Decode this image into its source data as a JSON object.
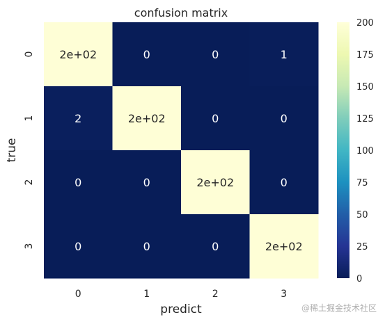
{
  "chart_data": {
    "type": "heatmap",
    "title": "confusion matrix",
    "xlabel": "predict",
    "ylabel": "true",
    "x_categories": [
      "0",
      "1",
      "2",
      "3"
    ],
    "y_categories": [
      "0",
      "1",
      "2",
      "3"
    ],
    "values": [
      [
        198,
        0,
        0,
        1
      ],
      [
        2,
        198,
        0,
        0
      ],
      [
        0,
        0,
        198,
        0
      ],
      [
        0,
        0,
        0,
        198
      ]
    ],
    "cell_labels": [
      [
        "2e+02",
        "0",
        "0",
        "1"
      ],
      [
        "2",
        "2e+02",
        "0",
        "0"
      ],
      [
        "0",
        "0",
        "2e+02",
        "0"
      ],
      [
        "0",
        "0",
        "0",
        "2e+02"
      ]
    ],
    "colorbar": {
      "range": [
        0,
        200
      ],
      "ticks": [
        "0",
        "25",
        "50",
        "75",
        "100",
        "125",
        "150",
        "175",
        "200"
      ],
      "colormap": "YlGnBu"
    }
  },
  "watermark": "@稀土掘金技术社区"
}
